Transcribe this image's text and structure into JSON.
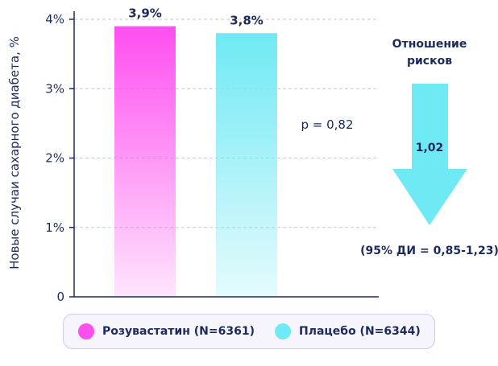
{
  "chart_data": {
    "type": "bar",
    "ylabel": "Новые случаи сахарного диабета, %",
    "ylim": [
      0,
      4
    ],
    "yticks": [
      "0",
      "1%",
      "2%",
      "3%",
      "4%"
    ],
    "grid": true,
    "series": [
      {
        "name": "Розувастатин (N=6361)",
        "value": 3.9,
        "label": "3,9%",
        "color": "#ff4ef0"
      },
      {
        "name": "Плацебо (N=6344)",
        "value": 3.8,
        "label": "3,8%",
        "color": "#6fe9f4"
      }
    ],
    "p_value": "p = 0,82",
    "hazard_ratio": {
      "title_line1": "Отношение",
      "title_line2": "рисков",
      "value": "1,02",
      "ci": "(95% ДИ = 0,85-1,23)",
      "color": "#6fe9f4"
    }
  },
  "legend": {
    "items": [
      {
        "label": "Розувастатин (N=6361)",
        "color": "#ff4ef0"
      },
      {
        "label": "Плацебо (N=6344)",
        "color": "#6fe9f4"
      }
    ]
  }
}
